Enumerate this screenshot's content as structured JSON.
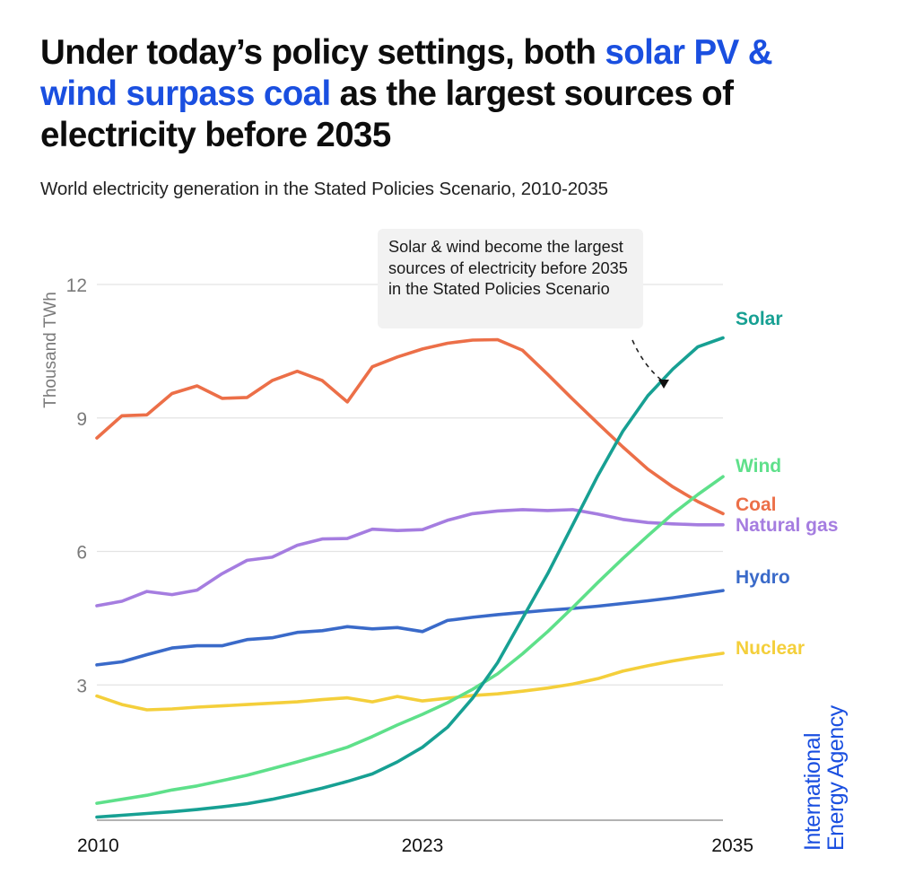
{
  "header": {
    "title_part1": "Under today’s policy settings, both ",
    "title_highlight": "solar PV & wind surpass coal",
    "title_part2": " as the largest sources of electricity before 2035",
    "subtitle": "World electricity generation in the Stated Policies Scenario, 2010-2035"
  },
  "annotation": {
    "text": "Solar & wind become the largest sources of electricity before 2035 in the Stated Policies Scenario"
  },
  "brand": {
    "line1": "International",
    "line2": "Energy Agency",
    "color": "#1a4fe0"
  },
  "colors": {
    "highlight": "#1a4fe0",
    "grid": "#e3e3e3",
    "axis": "#9a9a9a",
    "callout_bg": "#f2f2f2"
  },
  "chart_data": {
    "type": "line",
    "title": "World electricity generation in the Stated Policies Scenario, 2010-2035",
    "xlabel": "",
    "ylabel": "Thousand TWh",
    "xlim": [
      2010,
      2035
    ],
    "ylim": [
      0,
      12
    ],
    "yticks": [
      3,
      6,
      9,
      12
    ],
    "xticks": [
      2010,
      2023,
      2035
    ],
    "grid": true,
    "legend": "direct-labels-right",
    "x": [
      2010,
      2011,
      2012,
      2013,
      2014,
      2015,
      2016,
      2017,
      2018,
      2019,
      2020,
      2021,
      2022,
      2023,
      2024,
      2025,
      2026,
      2027,
      2028,
      2029,
      2030,
      2031,
      2032,
      2033,
      2034,
      2035
    ],
    "series": [
      {
        "name": "Coal",
        "label": "Coal",
        "color": "#ec6f48",
        "values": [
          8.55,
          9.05,
          9.07,
          9.55,
          9.72,
          9.44,
          9.46,
          9.84,
          10.05,
          9.84,
          9.36,
          10.15,
          10.37,
          10.55,
          10.68,
          10.75,
          10.76,
          10.52,
          9.98,
          9.42,
          8.88,
          8.35,
          7.85,
          7.45,
          7.12,
          6.85
        ]
      },
      {
        "name": "Natural gas",
        "label": "Natural gas",
        "color": "#a57de0",
        "values": [
          4.78,
          4.88,
          5.1,
          5.03,
          5.13,
          5.5,
          5.8,
          5.87,
          6.14,
          6.28,
          6.29,
          6.5,
          6.47,
          6.49,
          6.7,
          6.85,
          6.91,
          6.94,
          6.92,
          6.94,
          6.84,
          6.72,
          6.65,
          6.62,
          6.6,
          6.6
        ]
      },
      {
        "name": "Hydro",
        "label": "Hydro",
        "color": "#3a6ac9",
        "values": [
          3.45,
          3.52,
          3.68,
          3.83,
          3.88,
          3.88,
          4.02,
          4.06,
          4.18,
          4.22,
          4.31,
          4.26,
          4.29,
          4.2,
          4.45,
          4.52,
          4.58,
          4.63,
          4.68,
          4.72,
          4.77,
          4.83,
          4.89,
          4.96,
          5.04,
          5.12
        ]
      },
      {
        "name": "Nuclear",
        "label": "Nuclear",
        "color": "#f4cf3b",
        "values": [
          2.75,
          2.56,
          2.44,
          2.46,
          2.5,
          2.53,
          2.56,
          2.59,
          2.62,
          2.67,
          2.71,
          2.62,
          2.74,
          2.64,
          2.7,
          2.76,
          2.8,
          2.86,
          2.93,
          3.02,
          3.14,
          3.31,
          3.43,
          3.54,
          3.63,
          3.71
        ]
      },
      {
        "name": "Wind",
        "label": "Wind",
        "color": "#5ee08a",
        "values": [
          0.34,
          0.43,
          0.52,
          0.64,
          0.73,
          0.85,
          0.97,
          1.12,
          1.27,
          1.43,
          1.6,
          1.84,
          2.1,
          2.34,
          2.6,
          2.9,
          3.25,
          3.7,
          4.2,
          4.74,
          5.3,
          5.84,
          6.35,
          6.85,
          7.28,
          7.68
        ]
      },
      {
        "name": "Solar",
        "label": "Solar",
        "color": "#17a093",
        "values": [
          0.03,
          0.07,
          0.11,
          0.15,
          0.2,
          0.26,
          0.33,
          0.43,
          0.55,
          0.68,
          0.83,
          1.0,
          1.27,
          1.6,
          2.05,
          2.7,
          3.5,
          4.5,
          5.5,
          6.6,
          7.7,
          8.7,
          9.5,
          10.1,
          10.6,
          10.8
        ]
      }
    ],
    "annotations": [
      "Solar & wind become the largest sources of electricity before 2035 in the Stated Policies Scenario"
    ]
  }
}
